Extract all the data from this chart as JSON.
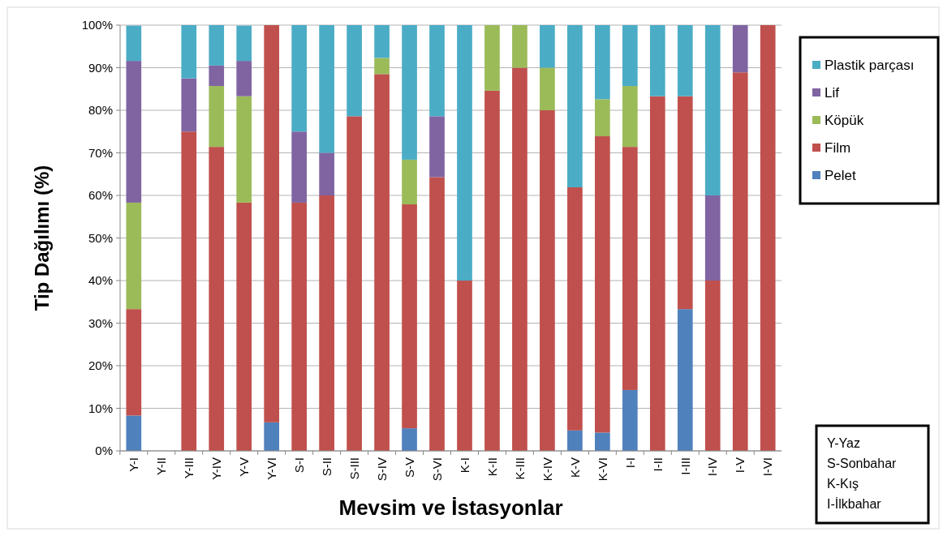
{
  "chart_data": {
    "type": "bar",
    "stacked": true,
    "xlabel": "Mevsim ve İstasyonlar",
    "ylabel": "Tip Dağılımı (%)",
    "categories": [
      "Y-I",
      "Y-II",
      "Y-III",
      "Y-IV",
      "Y-V",
      "Y-VI",
      "S-I",
      "S-II",
      "S-III",
      "S-IV",
      "S-V",
      "S-VI",
      "K-I",
      "K-II",
      "K-III",
      "K-IV",
      "K-V",
      "K-VI",
      "I-I",
      "I-II",
      "I-III",
      "I-IV",
      "I-V",
      "I-VI"
    ],
    "series": [
      {
        "name": "Pelet",
        "color": "#4f81bd",
        "values": [
          8.3,
          0,
          0,
          0,
          0,
          6.7,
          0,
          0,
          0,
          0,
          5.3,
          0,
          0,
          0,
          0,
          0,
          4.8,
          4.3,
          14.3,
          0,
          33.3,
          0,
          0,
          0
        ]
      },
      {
        "name": "Film",
        "color": "#c0504d",
        "values": [
          25,
          0,
          75,
          71.4,
          58.3,
          93.3,
          58.3,
          60,
          78.6,
          88.5,
          52.6,
          64.3,
          40,
          84.6,
          90,
          80,
          57.1,
          69.6,
          57.1,
          83.3,
          50,
          40,
          88.9,
          100
        ]
      },
      {
        "name": "Köpük",
        "color": "#9bbb59",
        "values": [
          25,
          0,
          0,
          14.3,
          25,
          0,
          0,
          0,
          0,
          3.8,
          10.5,
          0,
          0,
          15.4,
          10,
          10,
          0,
          8.7,
          14.3,
          0,
          0,
          0,
          0,
          0
        ]
      },
      {
        "name": "Lif",
        "color": "#8064a2",
        "values": [
          33.3,
          0,
          12.5,
          4.8,
          8.3,
          0,
          16.7,
          10,
          0,
          0,
          0,
          14.3,
          0,
          0,
          0,
          0,
          0,
          0,
          0,
          0,
          0,
          20,
          11.1,
          0
        ]
      },
      {
        "name": "Plastik parçası",
        "color": "#4bacc6",
        "values": [
          8.3,
          0,
          12.5,
          9.5,
          8.3,
          0,
          25,
          30,
          21.4,
          7.7,
          31.6,
          21.4,
          60,
          0,
          0,
          10,
          38.1,
          17.4,
          14.3,
          16.7,
          16.7,
          40,
          0,
          0
        ]
      }
    ],
    "ylim": [
      0,
      100
    ],
    "yticks": [
      {
        "value": 0,
        "label": "0%"
      },
      {
        "value": 10,
        "label": "10%"
      },
      {
        "value": 20,
        "label": "20%"
      },
      {
        "value": 30,
        "label": "30%"
      },
      {
        "value": 40,
        "label": "40%"
      },
      {
        "value": 50,
        "label": "50%"
      },
      {
        "value": 60,
        "label": "60%"
      },
      {
        "value": 70,
        "label": "70%"
      },
      {
        "value": 80,
        "label": "80%"
      },
      {
        "value": 90,
        "label": "90%"
      },
      {
        "value": 100,
        "label": "100%"
      }
    ],
    "grid": "y",
    "legend": "right",
    "annotations": [
      "Y-Yaz",
      "S-Sonbahar",
      "K-Kış",
      "I-İlkbahar"
    ]
  }
}
